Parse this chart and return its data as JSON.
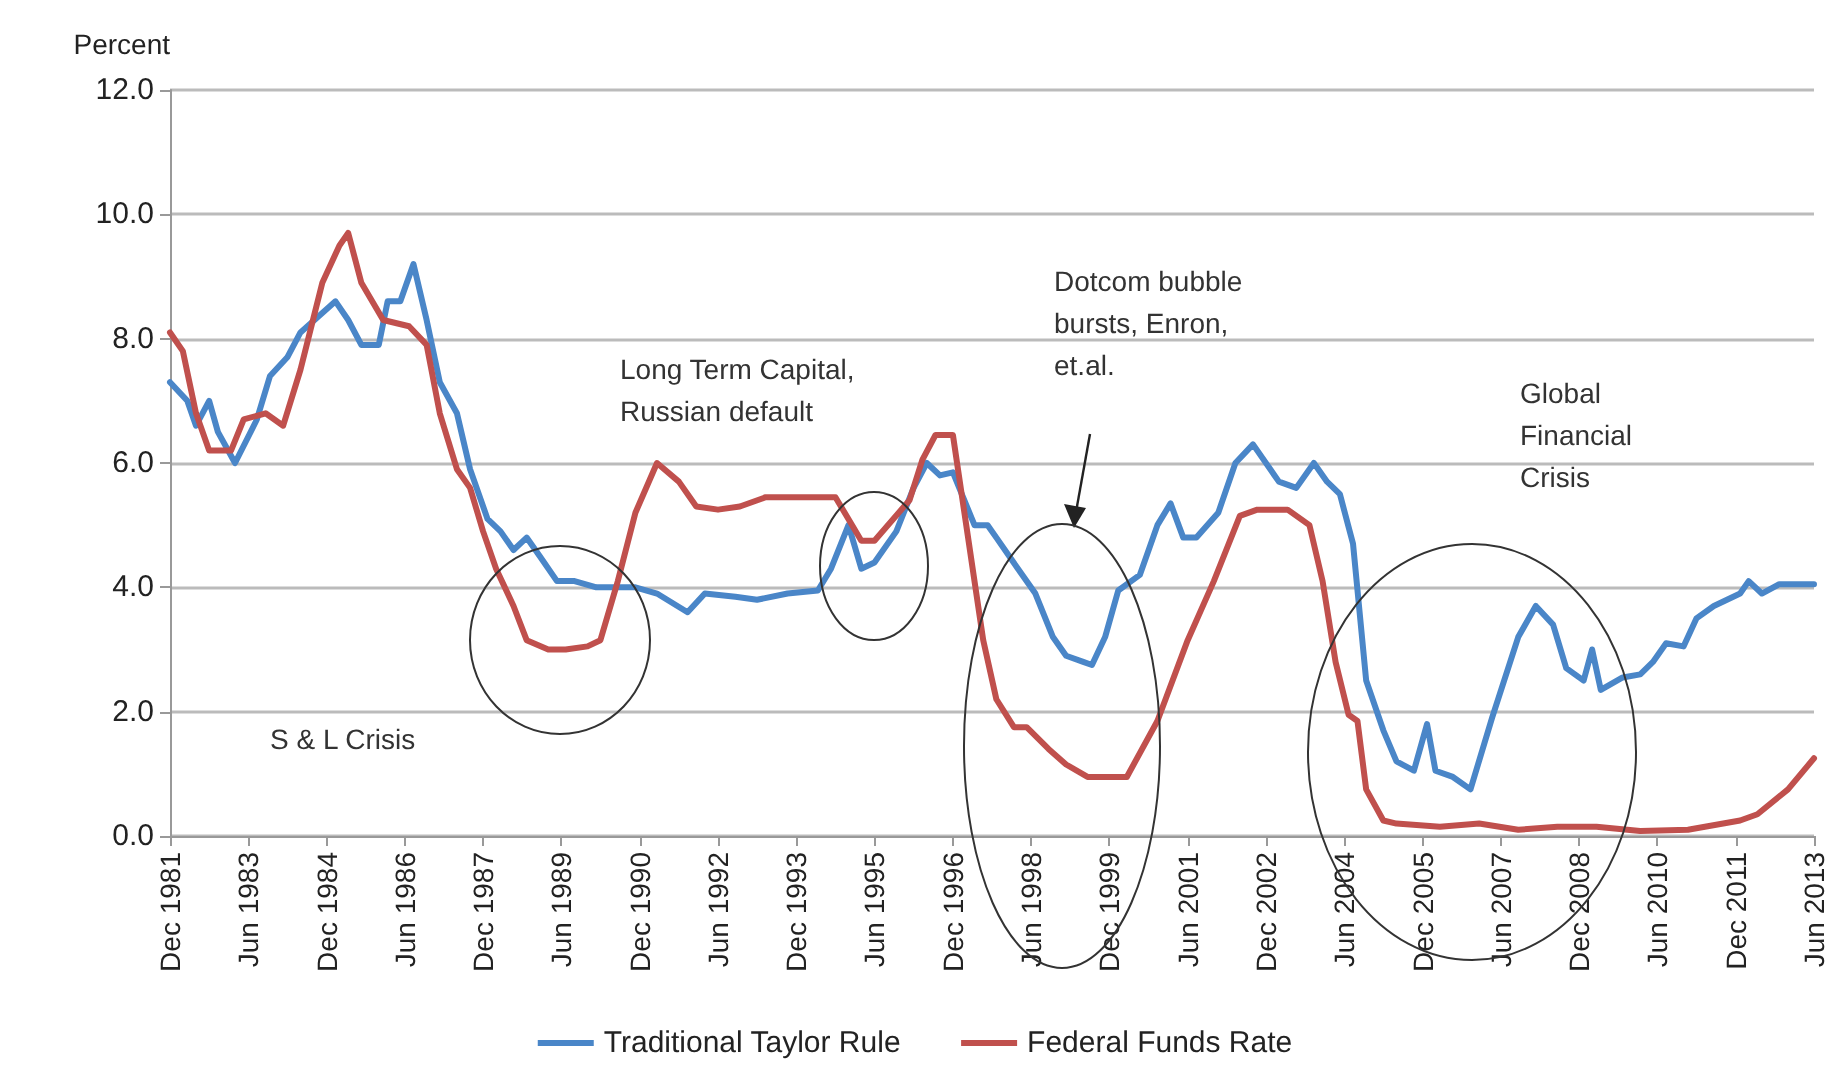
{
  "chart_data": {
    "type": "line",
    "ylabel": "Percent",
    "ylim": [
      0,
      12
    ],
    "yticks": [
      {
        "value": 0,
        "label": "0.0"
      },
      {
        "value": 2,
        "label": "2.0"
      },
      {
        "value": 4,
        "label": "4.0"
      },
      {
        "value": 6,
        "label": "6.0"
      },
      {
        "value": 8,
        "label": "8.0"
      },
      {
        "value": 10,
        "label": "10.0"
      },
      {
        "value": 12,
        "label": "12.0"
      }
    ],
    "xlim": [
      "1981-12",
      "2013-06"
    ],
    "xticks": [
      {
        "value": "1981-12",
        "label": "Dec 1981"
      },
      {
        "value": "1983-06",
        "label": "Jun 1983"
      },
      {
        "value": "1984-12",
        "label": "Dec 1984"
      },
      {
        "value": "1986-06",
        "label": "Jun 1986"
      },
      {
        "value": "1987-12",
        "label": "Dec 1987"
      },
      {
        "value": "1989-06",
        "label": "Jun 1989"
      },
      {
        "value": "1990-12",
        "label": "Dec 1990"
      },
      {
        "value": "1992-06",
        "label": "Jun 1992"
      },
      {
        "value": "1993-12",
        "label": "Dec 1993"
      },
      {
        "value": "1995-06",
        "label": "Jun 1995"
      },
      {
        "value": "1996-12",
        "label": "Dec 1996"
      },
      {
        "value": "1998-06",
        "label": "Jun 1998"
      },
      {
        "value": "1999-12",
        "label": "Dec 1999"
      },
      {
        "value": "2001-06",
        "label": "Jun 2001"
      },
      {
        "value": "2002-12",
        "label": "Dec 2002"
      },
      {
        "value": "2004-06",
        "label": "Jun 2004"
      },
      {
        "value": "2005-12",
        "label": "Dec 2005"
      },
      {
        "value": "2007-06",
        "label": "Jun 2007"
      },
      {
        "value": "2008-12",
        "label": "Dec 2008"
      },
      {
        "value": "2010-06",
        "label": "Jun 2010"
      },
      {
        "value": "2011-12",
        "label": "Dec 2011"
      },
      {
        "value": "2013-06",
        "label": "Jun 2013"
      }
    ],
    "grid": "y",
    "legend": "bottom",
    "marker": "none",
    "line_style": "solid",
    "series": [
      {
        "name": "Traditional Taylor Rule",
        "color": "#4a86c8",
        "x": [
          "1981-12",
          "1982-04",
          "1982-06",
          "1982-09",
          "1982-11",
          "1983-03",
          "1983-08",
          "1983-11",
          "1984-03",
          "1984-06",
          "1985-02",
          "1985-05",
          "1985-08",
          "1985-12",
          "1986-02",
          "1986-05",
          "1986-08",
          "1986-11",
          "1987-02",
          "1987-06",
          "1987-09",
          "1988-01",
          "1988-04",
          "1988-07",
          "1988-10",
          "1989-01",
          "1989-05",
          "1989-09",
          "1990-02",
          "1990-11",
          "1991-04",
          "1991-11",
          "1992-03",
          "1992-10",
          "1993-03",
          "1993-10",
          "1994-05",
          "1994-08",
          "1994-12",
          "1995-03",
          "1995-06",
          "1995-11",
          "1996-03",
          "1996-06",
          "1996-09",
          "1996-12",
          "1997-05",
          "1997-08",
          "1997-10",
          "1998-03",
          "1998-07",
          "1998-11",
          "1999-02",
          "1999-06",
          "1999-08",
          "1999-11",
          "2000-02",
          "2000-07",
          "2000-11",
          "2001-02",
          "2001-05",
          "2001-08",
          "2002-01",
          "2002-05",
          "2002-09",
          "2003-03",
          "2003-07",
          "2003-11",
          "2004-02",
          "2004-05",
          "2004-08",
          "2004-11",
          "2005-03",
          "2005-06",
          "2005-10",
          "2006-01",
          "2006-03",
          "2006-07",
          "2006-11",
          "2007-04",
          "2007-10",
          "2008-02",
          "2008-06",
          "2008-09",
          "2009-01",
          "2009-03",
          "2009-05",
          "2009-10",
          "2010-02",
          "2010-05",
          "2010-08",
          "2010-12",
          "2011-03",
          "2011-07",
          "2012-01",
          "2012-03",
          "2012-06",
          "2012-10",
          "2013-06"
        ],
        "values": [
          7.3,
          7.0,
          6.6,
          7.0,
          6.5,
          6.0,
          6.7,
          7.4,
          7.7,
          8.1,
          8.6,
          8.3,
          7.9,
          7.9,
          8.6,
          8.6,
          9.2,
          8.3,
          7.3,
          6.8,
          5.9,
          5.1,
          4.9,
          4.6,
          4.8,
          4.5,
          4.1,
          4.1,
          4.0,
          4.0,
          3.9,
          3.6,
          3.9,
          3.85,
          3.8,
          3.9,
          3.95,
          4.3,
          5.0,
          4.3,
          4.4,
          4.9,
          5.6,
          6.0,
          5.8,
          5.85,
          5.0,
          5.0,
          4.8,
          4.3,
          3.9,
          3.2,
          2.9,
          2.8,
          2.75,
          3.2,
          3.95,
          4.2,
          5.0,
          5.35,
          4.8,
          4.8,
          5.2,
          6.0,
          6.3,
          5.7,
          5.6,
          6.0,
          5.7,
          5.5,
          4.7,
          2.5,
          1.7,
          1.2,
          1.05,
          1.8,
          1.05,
          0.95,
          0.75,
          1.9,
          3.2,
          3.7,
          3.4,
          2.7,
          2.5,
          3.0,
          2.35,
          2.55,
          2.6,
          2.8,
          3.1,
          3.05,
          3.5,
          3.7,
          3.9,
          4.1,
          3.9,
          4.05,
          4.05
        ]
      },
      {
        "name": "Federal Funds Rate",
        "color": "#c0504d",
        "x": [
          "1981-12",
          "1982-03",
          "1982-06",
          "1982-09",
          "1983-02",
          "1983-05",
          "1983-10",
          "1984-02",
          "1984-06",
          "1984-11",
          "1985-03",
          "1985-05",
          "1985-08",
          "1986-01",
          "1986-07",
          "1986-11",
          "1987-02",
          "1987-06",
          "1987-09",
          "1987-12",
          "1988-03",
          "1988-07",
          "1988-10",
          "1989-03",
          "1989-07",
          "1989-12",
          "1990-03",
          "1990-07",
          "1990-11",
          "1991-04",
          "1991-09",
          "1992-01",
          "1992-06",
          "1992-11",
          "1993-05",
          "1993-12",
          "1994-09",
          "1995-03",
          "1995-06",
          "1996-02",
          "1996-05",
          "1996-08",
          "1996-12",
          "1997-03",
          "1997-07",
          "1997-10",
          "1998-02",
          "1998-05",
          "1998-10",
          "1999-02",
          "1999-07",
          "2000-04",
          "2000-11",
          "2001-06",
          "2001-12",
          "2002-06",
          "2002-10",
          "2003-05",
          "2003-10",
          "2004-01",
          "2004-04",
          "2004-07",
          "2004-09",
          "2004-11",
          "2005-03",
          "2005-06",
          "2006-04",
          "2007-01",
          "2007-10",
          "2008-07",
          "2009-04",
          "2010-02",
          "2011-01",
          "2012-01",
          "2012-05",
          "2012-12",
          "2013-06"
        ],
        "values": [
          8.1,
          7.8,
          6.8,
          6.2,
          6.2,
          6.7,
          6.8,
          6.6,
          7.5,
          8.9,
          9.5,
          9.7,
          8.9,
          8.3,
          8.2,
          7.9,
          6.8,
          5.9,
          5.6,
          4.9,
          4.3,
          3.7,
          3.15,
          3.0,
          3.0,
          3.05,
          3.15,
          4.1,
          5.2,
          6.0,
          5.7,
          5.3,
          5.25,
          5.3,
          5.45,
          5.45,
          5.45,
          4.75,
          4.75,
          5.4,
          6.05,
          6.45,
          6.45,
          5.05,
          3.15,
          2.2,
          1.75,
          1.75,
          1.4,
          1.15,
          0.95,
          0.95,
          1.85,
          3.15,
          4.1,
          5.15,
          5.25,
          5.25,
          5.0,
          4.1,
          2.8,
          1.95,
          1.85,
          0.75,
          0.25,
          0.2,
          0.15,
          0.2,
          0.1,
          0.15,
          0.15,
          0.08,
          0.1,
          0.25,
          0.35,
          0.75,
          1.25
        ]
      }
    ],
    "annotations": [
      "S & L Crisis",
      "Long Term Capital,\nRussian default",
      "Dotcom bubble\nbursts, Enron,\net.al.",
      "Global\nFinancial\nCrisis"
    ]
  }
}
